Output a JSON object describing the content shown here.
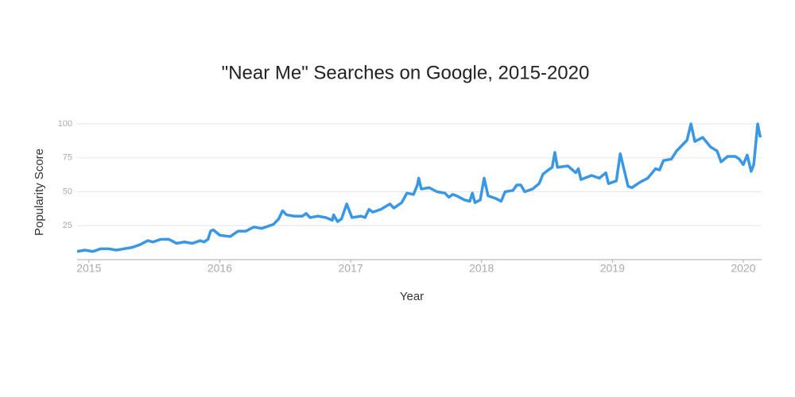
{
  "chart_data": {
    "type": "line",
    "title": "\"Near Me\" Searches on Google, 2015-2020",
    "x_label": "Year",
    "y_label": "Popularity Score",
    "x": [
      2014.91,
      2014.97,
      2015.03,
      2015.09,
      2015.15,
      2015.21,
      2015.27,
      2015.33,
      2015.39,
      2015.45,
      2015.49,
      2015.55,
      2015.61,
      2015.67,
      2015.73,
      2015.79,
      2015.85,
      2015.88,
      2015.91,
      2015.93,
      2015.95,
      2016.0,
      2016.08,
      2016.14,
      2016.2,
      2016.26,
      2016.32,
      2016.41,
      2016.45,
      2016.48,
      2016.51,
      2016.57,
      2016.63,
      2016.66,
      2016.69,
      2016.75,
      2016.81,
      2016.86,
      2016.87,
      2016.9,
      2016.93,
      2016.97,
      2017.01,
      2017.08,
      2017.11,
      2017.14,
      2017.17,
      2017.23,
      2017.3,
      2017.33,
      2017.39,
      2017.43,
      2017.48,
      2017.51,
      2017.52,
      2017.54,
      2017.6,
      2017.66,
      2017.72,
      2017.75,
      2017.78,
      2017.81,
      2017.87,
      2017.91,
      2017.93,
      2017.95,
      2017.99,
      2018.02,
      2018.05,
      2018.11,
      2018.15,
      2018.18,
      2018.24,
      2018.27,
      2018.3,
      2018.33,
      2018.39,
      2018.44,
      2018.47,
      2018.51,
      2018.54,
      2018.56,
      2018.58,
      2018.66,
      2018.72,
      2018.74,
      2018.76,
      2018.84,
      2018.9,
      2018.95,
      2018.97,
      2019.03,
      2019.06,
      2019.12,
      2019.15,
      2019.21,
      2019.27,
      2019.33,
      2019.36,
      2019.39,
      2019.45,
      2019.49,
      2019.53,
      2019.57,
      2019.6,
      2019.63,
      2019.69,
      2019.75,
      2019.8,
      2019.83,
      2019.88,
      2019.94,
      2019.97,
      2020.0,
      2020.03,
      2020.06,
      2020.08,
      2020.11,
      2020.13
    ],
    "series": [
      {
        "name": "Popularity Score",
        "color": "#3a97e3",
        "values": [
          6,
          7,
          6,
          8,
          8,
          7,
          8,
          9,
          11,
          14,
          13,
          15,
          15,
          12,
          13,
          12,
          14,
          13,
          15,
          21,
          22,
          18,
          17,
          21,
          21,
          24,
          23,
          26,
          30,
          36,
          33,
          32,
          32,
          34,
          31,
          32,
          31,
          29,
          33,
          28,
          30,
          41,
          31,
          32,
          31,
          37,
          35,
          37,
          41,
          38,
          42,
          49,
          48,
          55,
          60,
          52,
          53,
          50,
          49,
          46,
          48,
          47,
          44,
          43,
          49,
          42,
          44,
          60,
          47,
          45,
          43,
          50,
          51,
          55,
          55,
          50,
          52,
          56,
          63,
          66,
          68,
          79,
          68,
          69,
          64,
          67,
          59,
          62,
          60,
          64,
          56,
          58,
          78,
          54,
          53,
          57,
          60,
          67,
          66,
          73,
          74,
          80,
          84,
          88,
          100,
          87,
          90,
          83,
          80,
          72,
          76,
          76,
          74,
          70,
          77,
          65,
          70,
          100,
          90
        ]
      }
    ],
    "xlim": [
      2014.91,
      2020.14
    ],
    "xticks": [
      2015,
      2016,
      2017,
      2018,
      2019,
      2020
    ],
    "ylim": [
      0,
      100
    ],
    "yticks": [
      25,
      50,
      75,
      100
    ],
    "grid": true
  }
}
